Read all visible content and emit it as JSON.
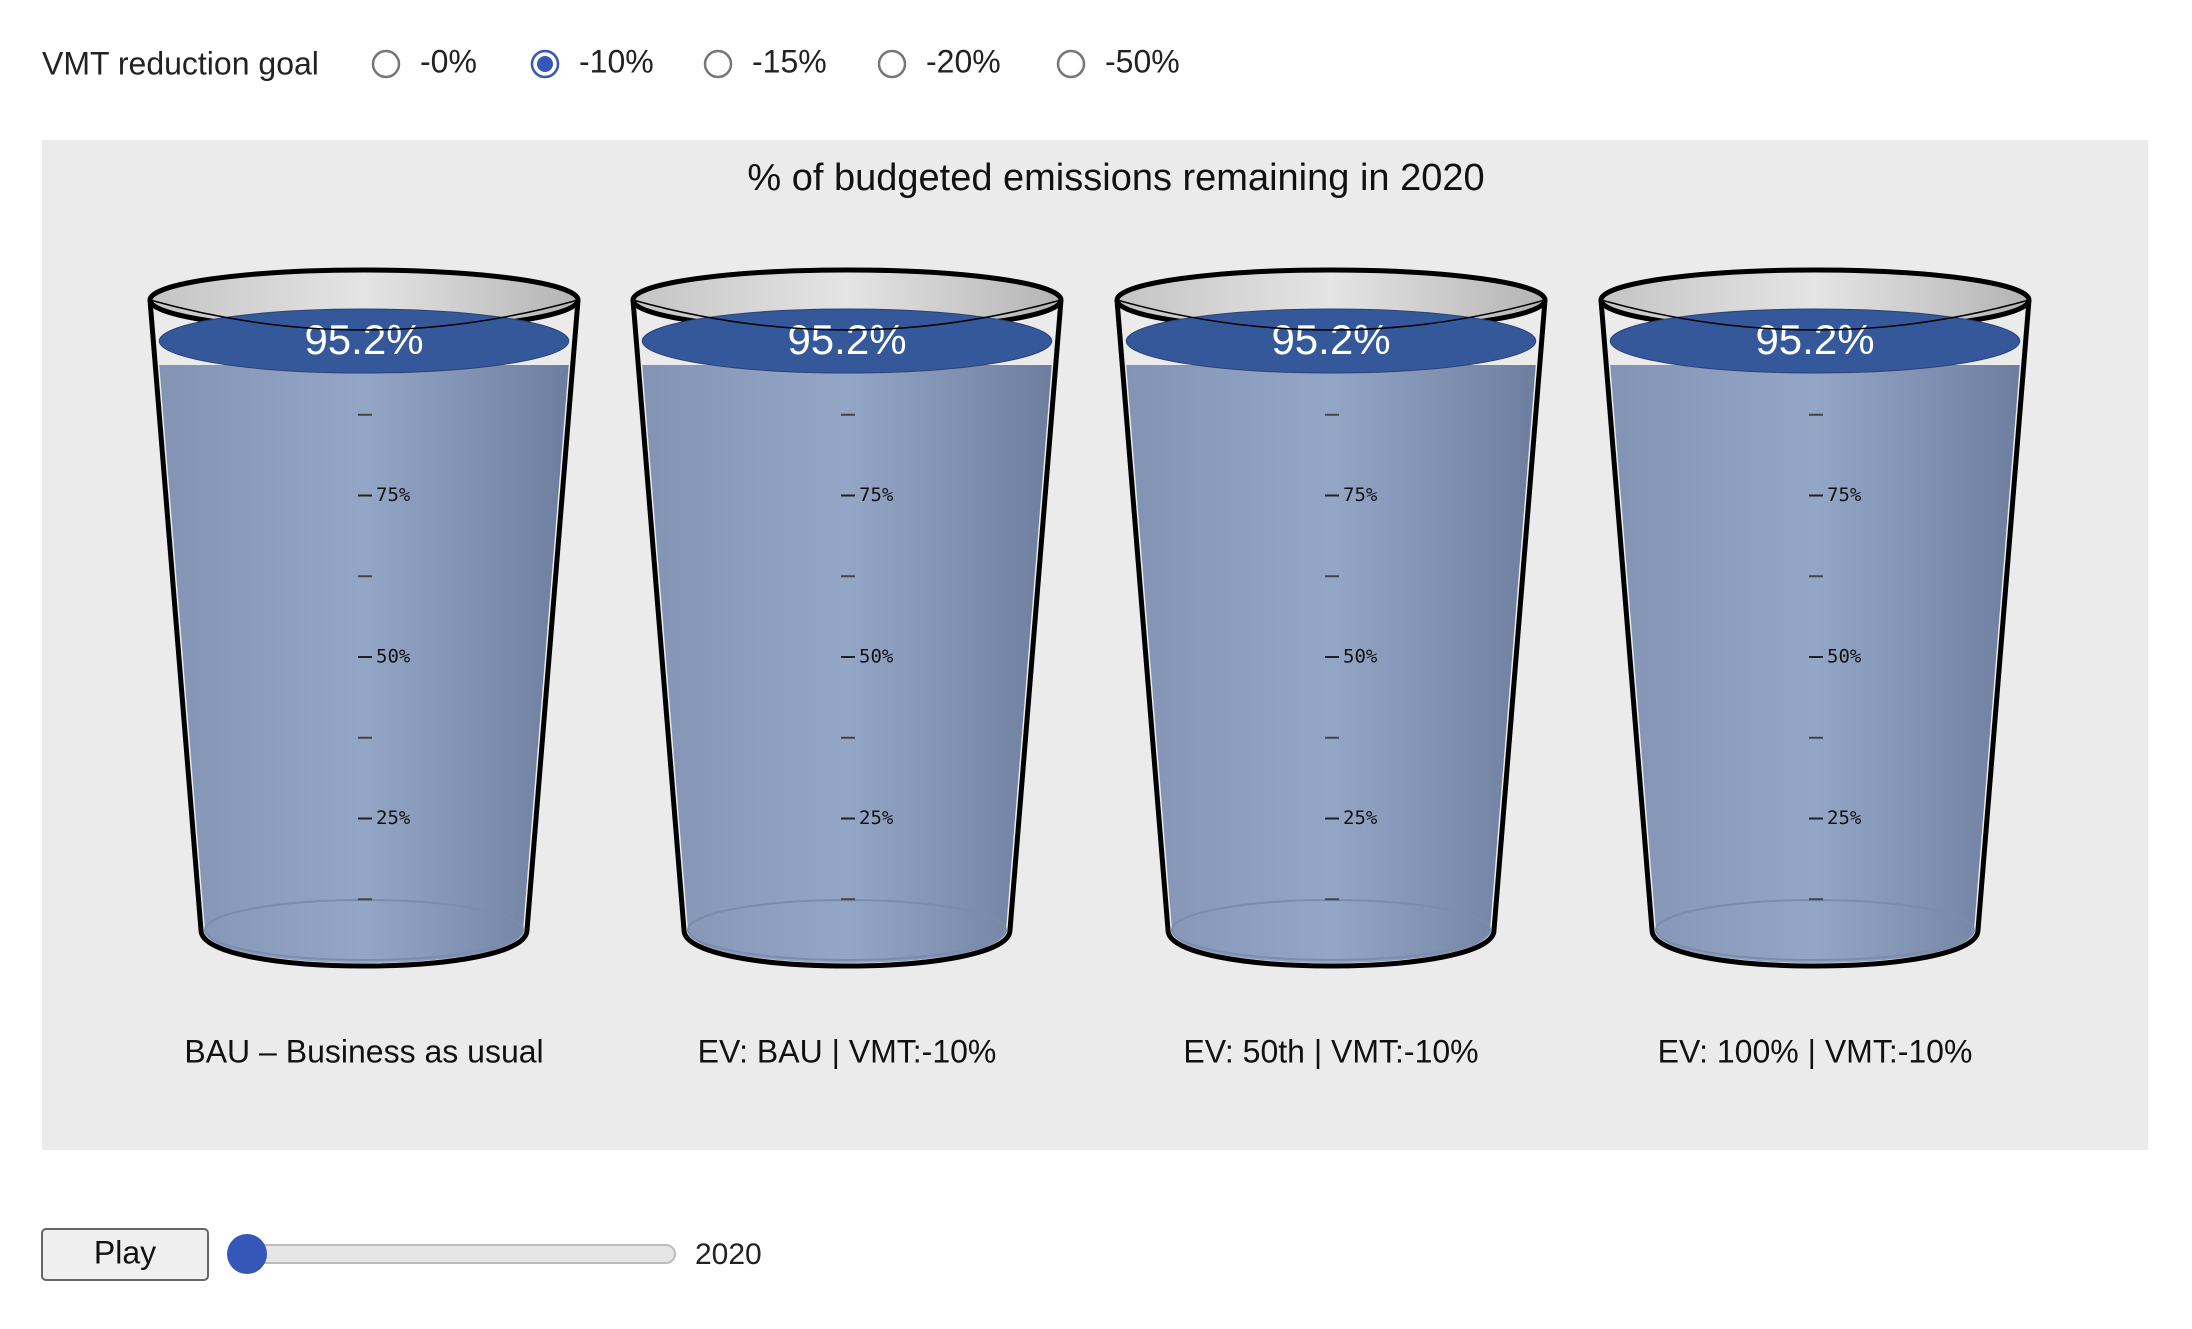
{
  "controls": {
    "label": "VMT reduction goal",
    "options": [
      "-0%",
      "-10%",
      "-15%",
      "-20%",
      "-50%"
    ],
    "selected": 1
  },
  "chart_data": {
    "type": "cup",
    "title": "% of budgeted emissions remaining in 2020",
    "categories": [
      "BAU – Business as usual",
      "EV: BAU | VMT:-10%",
      "EV: 50th | VMT:-10%",
      "EV: 100% | VMT:-10%"
    ],
    "values": [
      95.2,
      95.2,
      95.2,
      95.2
    ],
    "value_labels": [
      "95.2%",
      "95.2%",
      "95.2%",
      "95.2%"
    ],
    "color": "#8fa1c2",
    "ylim": [
      0,
      100
    ],
    "yticks": [
      {
        "value": 25,
        "label": "25%"
      },
      {
        "value": 50,
        "label": "50%"
      },
      {
        "value": 75,
        "label": "75%"
      }
    ],
    "yticks_minor": [
      12.5,
      37.5,
      62.5,
      87.5
    ]
  },
  "player": {
    "button": "Play",
    "year": "2020"
  }
}
